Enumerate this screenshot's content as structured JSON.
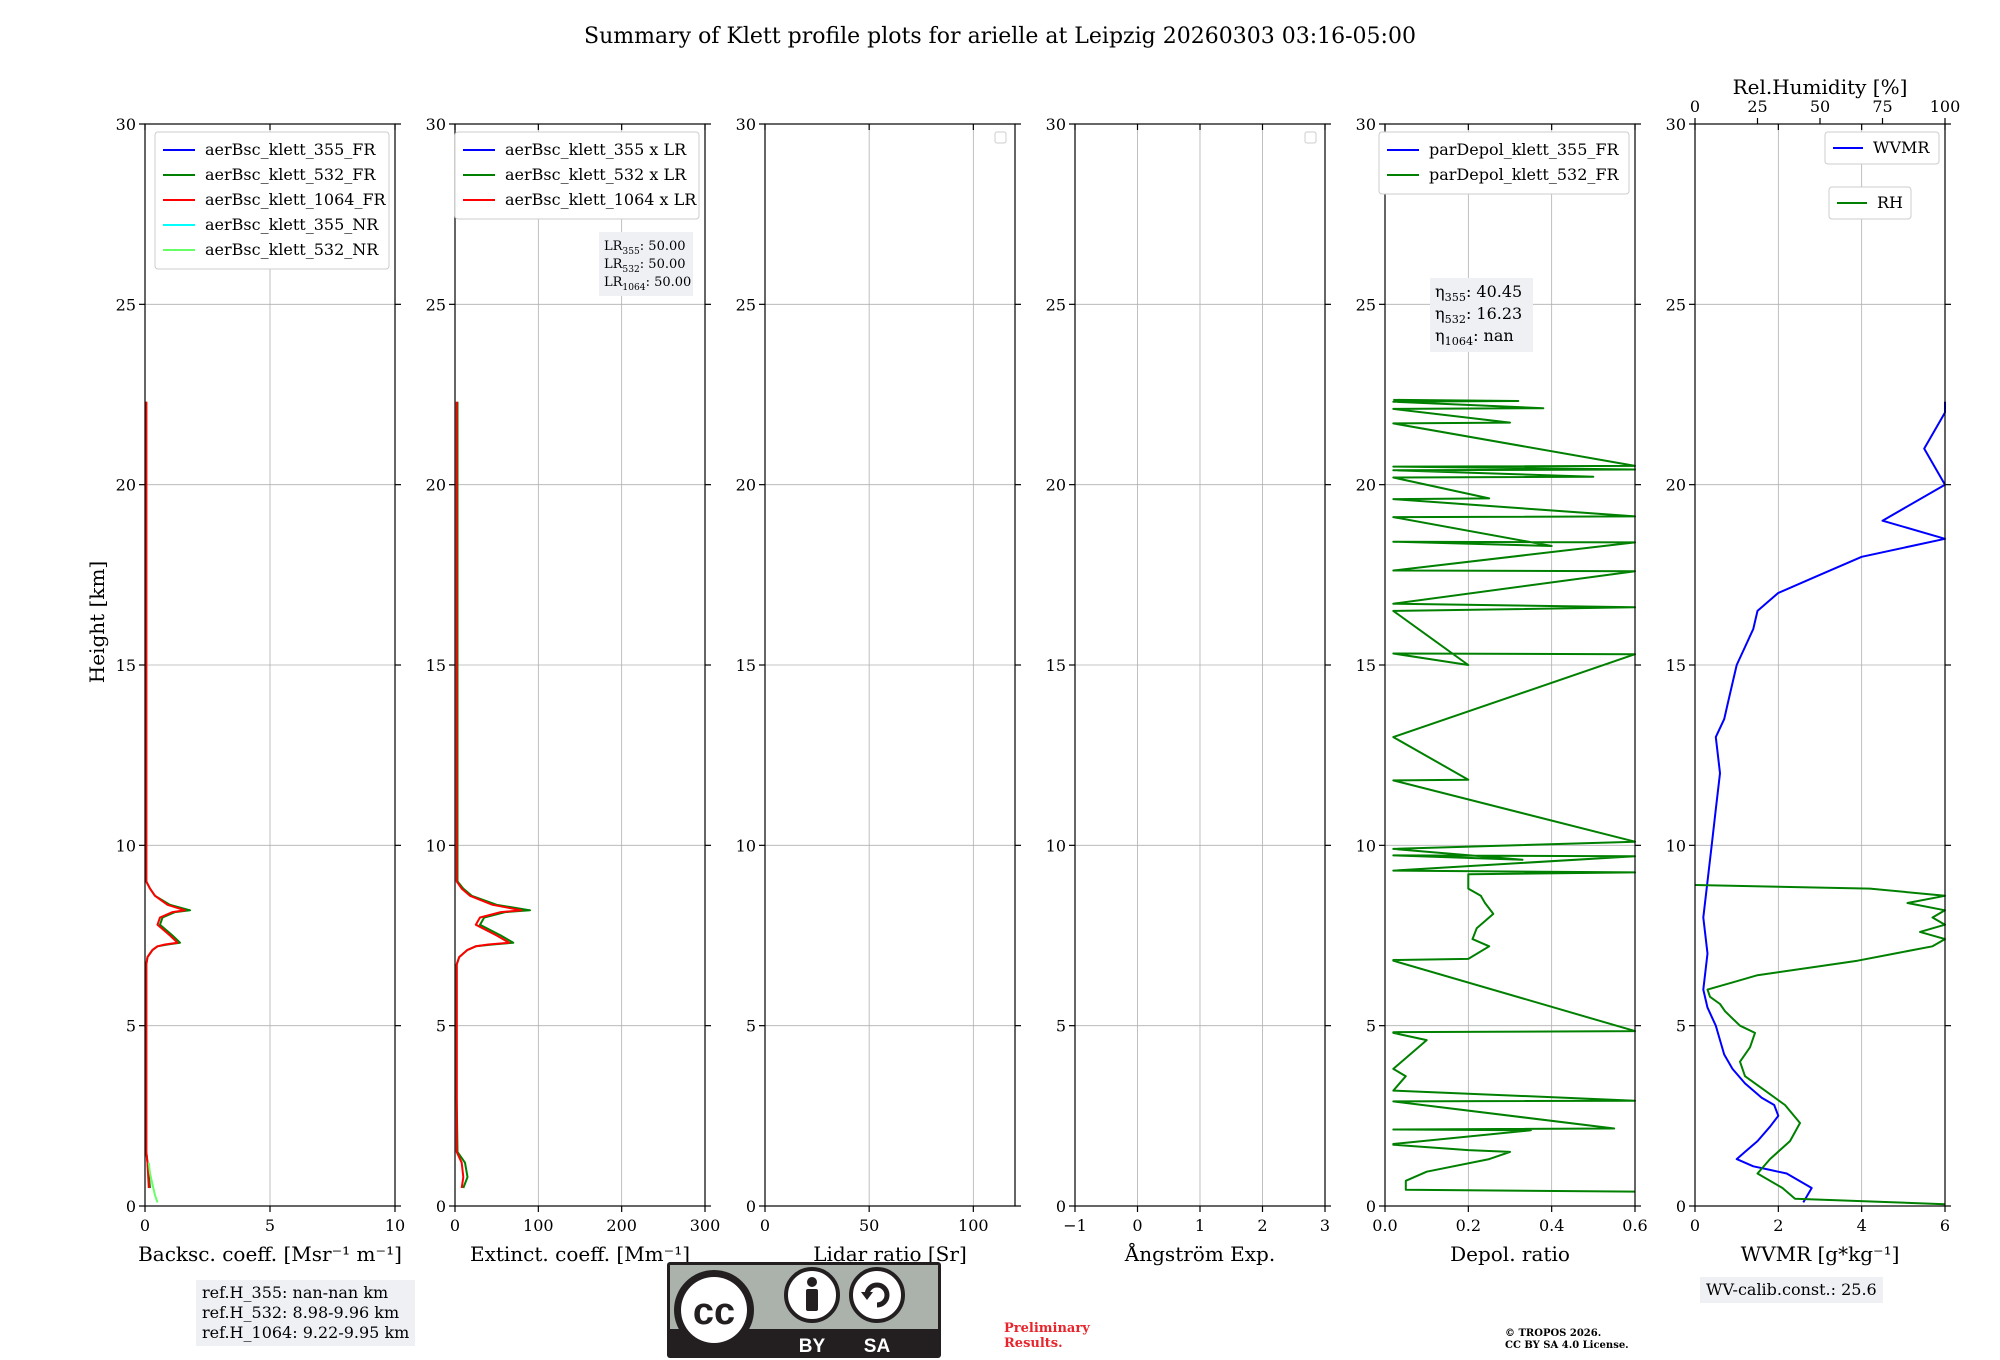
{
  "figure": {
    "title": "Summary of Klett profile plots for arielle at Leipzig 20260303 03:16-05:00",
    "ylabel": "Height [km]",
    "ref_heights": [
      "ref.H_355: nan-nan km",
      "ref.H_532: 8.98-9.96 km",
      "ref.H_1064: 9.22-9.95 km"
    ],
    "wv_calib": "WV-calib.const.: 25.6",
    "preliminary": [
      "Preliminary",
      "Results."
    ],
    "copyright": [
      "© TROPOS 2026.",
      "CC BY SA 4.0 License."
    ],
    "license_badge": {
      "by": "BY",
      "sa": "SA",
      "cc": "cc",
      "colors": {
        "bg": "#aab2ab",
        "dark": "#231f20"
      }
    }
  },
  "chart_data": [
    {
      "type": "line",
      "name": "backscatter",
      "xlabel": "Backsc. coeff. [Msr⁻¹ m⁻¹]",
      "xlim": [
        0,
        10
      ],
      "xticks": [
        0,
        5,
        10
      ],
      "ylim": [
        0,
        30
      ],
      "yticks": [
        0,
        5,
        10,
        15,
        20,
        25,
        30
      ],
      "grid": true,
      "legend": "top-right",
      "series": [
        {
          "name": "aerBsc_klett_355_FR",
          "color": "#0000ff",
          "x": [],
          "y": []
        },
        {
          "name": "aerBsc_klett_532_FR",
          "color": "#008000",
          "x": [
            0.2,
            0.1,
            0.05,
            0.05,
            0.05,
            0.05,
            0.1,
            0.2,
            0.3,
            0.5,
            0.9,
            1.4,
            1.1,
            0.6,
            0.7,
            1.2,
            1.8,
            1.0,
            0.4,
            0.2,
            0.05,
            0.05,
            0.05,
            0.05,
            0.05,
            0.05
          ],
          "y": [
            0.5,
            1.2,
            1.5,
            3,
            5,
            6.7,
            6.9,
            7.0,
            7.1,
            7.2,
            7.25,
            7.3,
            7.5,
            7.8,
            8.0,
            8.15,
            8.2,
            8.35,
            8.6,
            8.8,
            9.0,
            10,
            12,
            15,
            20,
            22.3
          ]
        },
        {
          "name": "aerBsc_klett_1064_FR",
          "color": "#ff0000",
          "x": [
            0.15,
            0.1,
            0.05,
            0.05,
            0.05,
            0.05,
            0.1,
            0.2,
            0.3,
            0.5,
            0.8,
            1.3,
            1.0,
            0.5,
            0.6,
            1.1,
            1.6,
            0.9,
            0.4,
            0.2,
            0.05,
            0.05,
            0.05,
            0.05,
            0.05,
            0.05
          ],
          "y": [
            0.5,
            1.2,
            1.5,
            3,
            5,
            6.7,
            6.9,
            7.0,
            7.1,
            7.2,
            7.25,
            7.3,
            7.5,
            7.8,
            8.0,
            8.15,
            8.2,
            8.35,
            8.6,
            8.8,
            9.0,
            10,
            12,
            15,
            20,
            22.3
          ]
        },
        {
          "name": "aerBsc_klett_355_NR",
          "color": "#00ffff",
          "x": [],
          "y": []
        },
        {
          "name": "aerBsc_klett_532_NR",
          "color": "#66ff66",
          "x": [
            0.5,
            0.4,
            0.3,
            0.2,
            0.15
          ],
          "y": [
            0.1,
            0.3,
            0.6,
            0.9,
            1.2
          ]
        }
      ]
    },
    {
      "type": "line",
      "name": "extinction",
      "xlabel": "Extinct. coeff. [Mm⁻¹]",
      "xlim": [
        0,
        300
      ],
      "xticks": [
        0,
        100,
        200,
        300
      ],
      "ylim": [
        0,
        30
      ],
      "yticks": [
        0,
        5,
        10,
        15,
        20,
        25,
        30
      ],
      "grid": true,
      "legend": "top-right",
      "lidar_ratios": [
        "LR355: 50.00",
        "LR532: 50.00",
        "LR1064: 50.00"
      ],
      "series": [
        {
          "name": "aerBsc_klett_355 x LR",
          "color": "#0000ff",
          "x": [],
          "y": []
        },
        {
          "name": "aerBsc_klett_532 x LR",
          "color": "#008000",
          "x": [
            10,
            15,
            12,
            3,
            2,
            2,
            5,
            10,
            15,
            25,
            45,
            70,
            55,
            30,
            35,
            60,
            90,
            50,
            20,
            10,
            3,
            3,
            3,
            3,
            3,
            3
          ],
          "y": [
            0.5,
            0.8,
            1.2,
            1.5,
            3,
            6.7,
            6.9,
            7.0,
            7.1,
            7.2,
            7.25,
            7.3,
            7.5,
            7.8,
            8.0,
            8.15,
            8.2,
            8.35,
            8.6,
            8.8,
            9.0,
            10,
            12,
            15,
            20,
            22.3
          ]
        },
        {
          "name": "aerBsc_klett_1064 x LR",
          "color": "#ff0000",
          "x": [
            8,
            10,
            8,
            2,
            2,
            2,
            5,
            10,
            15,
            25,
            40,
            65,
            50,
            25,
            30,
            55,
            80,
            45,
            18,
            8,
            2,
            2,
            2,
            2,
            2,
            2
          ],
          "y": [
            0.5,
            0.8,
            1.2,
            1.5,
            3,
            6.7,
            6.9,
            7.0,
            7.1,
            7.2,
            7.25,
            7.3,
            7.5,
            7.8,
            8.0,
            8.15,
            8.2,
            8.35,
            8.6,
            8.8,
            9.0,
            10,
            12,
            15,
            20,
            22.3
          ]
        }
      ]
    },
    {
      "type": "line",
      "name": "lidar-ratio",
      "xlabel": "Lidar ratio [Sr]",
      "xlim": [
        0,
        120
      ],
      "xticks": [
        0,
        50,
        100
      ],
      "ylim": [
        0,
        30
      ],
      "yticks": [
        0,
        5,
        10,
        15,
        20,
        25,
        30
      ],
      "grid": true,
      "legend": "top-right",
      "series": []
    },
    {
      "type": "line",
      "name": "angstrom",
      "xlabel": "Ångström Exp.",
      "xlim": [
        -1,
        3
      ],
      "xticks": [
        -1,
        0,
        1,
        2,
        3
      ],
      "ylim": [
        0,
        30
      ],
      "yticks": [
        0,
        5,
        10,
        15,
        20,
        25,
        30
      ],
      "grid": true,
      "legend": "top-right",
      "series": []
    },
    {
      "type": "line",
      "name": "depolarization",
      "xlabel": "Depol. ratio",
      "xlim": [
        0,
        0.6
      ],
      "xticks": [
        0.0,
        0.2,
        0.4,
        0.6
      ],
      "ylim": [
        0,
        30
      ],
      "yticks": [
        0,
        5,
        10,
        15,
        20,
        25,
        30
      ],
      "grid": true,
      "legend": "top-right",
      "eta_values": [
        "η355: 40.45",
        "η532: 16.23",
        "η1064: nan"
      ],
      "series": [
        {
          "name": "parDepol_klett_355_FR",
          "color": "#0000ff",
          "x": [],
          "y": []
        },
        {
          "name": "parDepol_klett_532_FR",
          "color": "#008000",
          "x": [
            0.6,
            0.05,
            0.05,
            0.1,
            0.25,
            0.3,
            0.2,
            0.02,
            0.02,
            0.35,
            0.02,
            0.55,
            0.02,
            0.6,
            0.02,
            0.05,
            0.02,
            0.1,
            0.02,
            0.02,
            0.6,
            0.02,
            0.02,
            0.2,
            0.25,
            0.21,
            0.22,
            0.26,
            0.24,
            0.23,
            0.2,
            0.2,
            0.6,
            0.02,
            0.6,
            0.02,
            0.33,
            0.02,
            0.6,
            0.02,
            0.2,
            0.02,
            0.6,
            0.02,
            0.2,
            0.02,
            0.6,
            0.02,
            0.6,
            0.02,
            0.6,
            0.02,
            0.4,
            0.02,
            0.6,
            0.02,
            0.25,
            0.02,
            0.5,
            0.02,
            0.6,
            0.02,
            0.6,
            0.02,
            0.3,
            0.02,
            0.38,
            0.02,
            0.32,
            0.02
          ],
          "y": [
            0.4,
            0.45,
            0.7,
            0.95,
            1.3,
            1.5,
            1.55,
            1.7,
            1.72,
            2.1,
            2.12,
            2.15,
            2.9,
            2.92,
            3.2,
            3.6,
            3.8,
            4.6,
            4.8,
            4.82,
            4.85,
            6.8,
            6.82,
            6.85,
            7.2,
            7.4,
            7.7,
            8.1,
            8.4,
            8.6,
            8.8,
            9.2,
            9.25,
            9.3,
            9.7,
            9.72,
            9.6,
            9.9,
            10.1,
            11.8,
            11.82,
            13.0,
            15.3,
            15.32,
            15.0,
            16.5,
            16.6,
            16.7,
            17.6,
            17.62,
            18.4,
            18.42,
            18.3,
            19.1,
            19.12,
            19.6,
            19.62,
            20.2,
            20.22,
            20.4,
            20.42,
            20.5,
            20.52,
            21.7,
            21.72,
            22.1,
            22.12,
            22.3,
            22.32,
            22.35
          ]
        }
      ]
    },
    {
      "type": "line",
      "name": "water-vapor",
      "xlabel": "WVMR [g*kg⁻¹]",
      "xlim": [
        0,
        6
      ],
      "xticks": [
        0,
        2,
        4,
        6
      ],
      "x2label": "Rel.Humidity [%]",
      "x2lim": [
        0,
        100
      ],
      "x2ticks": [
        0,
        25,
        50,
        75,
        100
      ],
      "ylim": [
        0,
        30
      ],
      "yticks": [
        0,
        5,
        10,
        15,
        20,
        25,
        30
      ],
      "grid": true,
      "legend": "top-right",
      "series": [
        {
          "name": "WVMR",
          "color": "#0000ff",
          "x": [
            2.6,
            2.8,
            2.5,
            2.2,
            1.8,
            1.4,
            1.0,
            1.2,
            1.5,
            1.8,
            2.0,
            1.9,
            1.6,
            1.2,
            0.9,
            0.7,
            0.6,
            0.5,
            0.3,
            0.2,
            0.3,
            0.2,
            0.3,
            0.4,
            0.5,
            0.6,
            0.5,
            0.7,
            0.8,
            0.9,
            1.0,
            1.2,
            1.4,
            1.5,
            2.0,
            3.0,
            4.0,
            6.0,
            4.5,
            6.0,
            5.5,
            6.0,
            6.0
          ],
          "y": [
            0.1,
            0.5,
            0.7,
            0.9,
            1.0,
            1.1,
            1.3,
            1.5,
            1.8,
            2.2,
            2.5,
            2.8,
            3.0,
            3.4,
            3.8,
            4.2,
            4.6,
            5.0,
            5.5,
            6.0,
            7.0,
            8.0,
            9.0,
            10.0,
            11.0,
            12.0,
            13.0,
            13.5,
            14.0,
            14.5,
            15.0,
            15.5,
            16.0,
            16.5,
            17.0,
            17.5,
            18.0,
            18.5,
            19.0,
            20.0,
            21.0,
            22.0,
            22.3
          ]
        },
        {
          "name": "RH",
          "color": "#008000",
          "x": [
            100,
            40,
            35,
            25,
            30,
            38,
            42,
            36,
            28,
            20,
            18,
            22,
            24,
            18,
            15,
            12,
            10,
            6,
            5,
            15,
            25,
            45,
            65,
            80,
            95,
            100,
            90,
            100,
            95,
            100,
            85,
            100,
            70,
            0
          ],
          "y": [
            0.05,
            0.2,
            0.5,
            0.9,
            1.3,
            1.8,
            2.3,
            2.8,
            3.2,
            3.6,
            4.0,
            4.4,
            4.8,
            5.0,
            5.2,
            5.4,
            5.6,
            5.8,
            6.0,
            6.2,
            6.4,
            6.6,
            6.8,
            7.0,
            7.2,
            7.4,
            7.6,
            7.8,
            8.0,
            8.2,
            8.4,
            8.6,
            8.8,
            8.9
          ]
        }
      ]
    }
  ]
}
